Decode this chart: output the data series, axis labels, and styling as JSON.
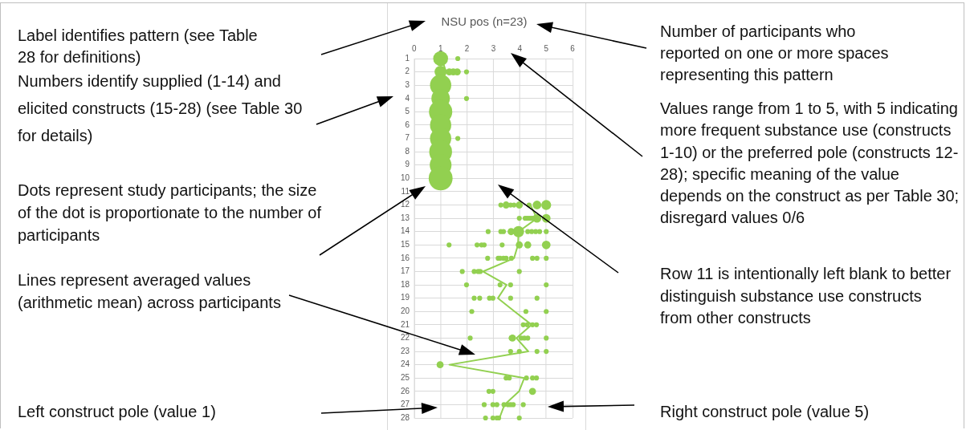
{
  "chart_data": {
    "type": "bubble",
    "title": "NSU pos (n=23)",
    "xlim": [
      0,
      6
    ],
    "xticks": [
      0,
      1,
      2,
      3,
      4,
      5,
      6
    ],
    "ylim": [
      28,
      1
    ],
    "yticks": [
      1,
      2,
      3,
      4,
      5,
      6,
      7,
      8,
      9,
      10,
      11,
      12,
      13,
      14,
      15,
      16,
      17,
      18,
      19,
      20,
      21,
      22,
      23,
      24,
      25,
      26,
      27,
      28
    ],
    "grid": true,
    "series": [
      {
        "color": "#92d050",
        "x": [
          1,
          1.65,
          1,
          1.33,
          1.48,
          1.63,
          1.98,
          1,
          1,
          1.98,
          1,
          1,
          1,
          1.65,
          1,
          1,
          1,
          3.28,
          3.48,
          3.65,
          3.78,
          3.98,
          4.35,
          4.65,
          5,
          3.98,
          4.2,
          4.27,
          4.35,
          4.42,
          4.5,
          4.65,
          5,
          2.8,
          3.28,
          3.38,
          3.67,
          3.95,
          4.3,
          4.45,
          4.6,
          4.75,
          5,
          1.32,
          2.38,
          2.55,
          2.65,
          3.33,
          3.98,
          4.3,
          5,
          2.78,
          3.18,
          3.25,
          3.38,
          3.48,
          3.68,
          4.48,
          4.65,
          5,
          1.82,
          2.27,
          2.42,
          2.5,
          3.98,
          1.98,
          3.25,
          3.65,
          5,
          2.27,
          2.48,
          2.85,
          2.98,
          3.65,
          4.65,
          2.18,
          4.23,
          5,
          4.13,
          4.28,
          4.48,
          4.63,
          2.12,
          3.67,
          3.72,
          3.75,
          4.05,
          4.17,
          4.3,
          5,
          3.65,
          3.98,
          4.65,
          5,
          0.98,
          3.48,
          3.6,
          4.25,
          4.48,
          4.63,
          2.83,
          2.98,
          4.48,
          2.65,
          2.98,
          3.13,
          3.4,
          3.55,
          3.65,
          3.75,
          4.13,
          2.7,
          2.98,
          3.13,
          3.2,
          3.98
        ],
        "values": [
          1,
          1,
          2,
          2,
          2,
          2,
          2,
          3,
          4,
          4,
          5,
          6,
          7,
          7,
          8,
          9,
          10,
          12,
          12,
          12,
          12,
          12,
          12,
          12,
          12,
          13,
          13,
          13,
          13,
          13,
          13,
          13,
          13,
          14,
          14,
          14,
          14,
          14,
          14,
          14,
          14,
          14,
          14,
          15,
          15,
          15,
          15,
          15,
          15,
          15,
          15,
          16,
          16,
          16,
          16,
          16,
          16,
          16,
          16,
          16,
          17,
          17,
          17,
          17,
          17,
          18,
          18,
          18,
          18,
          19,
          19,
          19,
          19,
          19,
          19,
          20,
          20,
          20,
          21,
          21,
          21,
          21,
          22,
          22,
          22,
          22,
          22,
          22,
          22,
          22,
          23,
          23,
          23,
          23,
          24,
          25,
          25,
          25,
          25,
          25,
          26,
          26,
          26,
          27,
          27,
          27,
          27,
          27,
          27,
          27,
          27,
          28,
          28,
          28,
          28,
          28
        ],
        "sizes": [
          0.39,
          0.043,
          0.26,
          0.087,
          0.087,
          0.087,
          0.043,
          0.79,
          0.6,
          0.043,
          0.95,
          0.79,
          0.79,
          0.043,
          0.91,
          0.83,
          1,
          0.043,
          0.087,
          0.043,
          0.043,
          0.087,
          0.043,
          0.13,
          0.17,
          0.043,
          0.043,
          0.043,
          0.043,
          0.043,
          0.043,
          0.13,
          0.13,
          0.043,
          0.043,
          0.043,
          0.087,
          0.22,
          0.043,
          0.043,
          0.043,
          0.043,
          0.043,
          0.043,
          0.043,
          0.043,
          0.043,
          0.043,
          0.087,
          0.087,
          0.13,
          0.043,
          0.043,
          0.043,
          0.043,
          0.043,
          0.043,
          0.043,
          0.043,
          0.043,
          0.043,
          0.043,
          0.043,
          0.043,
          0.043,
          0.043,
          0.043,
          0.043,
          0.043,
          0.043,
          0.043,
          0.043,
          0.043,
          0.043,
          0.043,
          0.043,
          0.043,
          0.043,
          0.043,
          0.043,
          0.043,
          0.043,
          0.043,
          0.043,
          0.087,
          0.043,
          0.043,
          0.043,
          0.043,
          0.043,
          0.043,
          0.043,
          0.043,
          0.043,
          0.087,
          0.043,
          0.043,
          0.043,
          0.043,
          0.043,
          0.043,
          0.043,
          0.087,
          0.043,
          0.043,
          0.043,
          0.043,
          0.043,
          0.043,
          0.043,
          0.043,
          0.043,
          0.043,
          0.043,
          0.043,
          0.043
        ]
      },
      {
        "type": "line",
        "color": "#92d050",
        "x": [
          1.05,
          1.2
        ],
        "values": [
          1,
          2
        ]
      },
      {
        "type": "line",
        "color": "#92d050",
        "x": [
          4.4,
          4.65,
          3.95,
          3.93,
          3.78,
          2.6,
          3.5,
          3.17,
          3.8,
          4.45,
          3.87,
          4.32,
          1.33,
          4.17,
          3.97,
          3.42,
          3.23
        ],
        "values": [
          12,
          13,
          14,
          15,
          16,
          17,
          18,
          19,
          20,
          21,
          22,
          23,
          24,
          25,
          26,
          27,
          28
        ]
      }
    ],
    "annotations": [
      "Label identifies pattern (see Table 28 for definitions)",
      "Numbers identify supplied (1-14) and elicited constructs (15-28) (see Table 30 for details)",
      "Dots represent study participants; the size of the dot is proportionate to the number of participants",
      "Lines represent averaged values (arithmetic mean) across participants",
      "Left construct pole (value 1)",
      "Number of participants who reported on one or more spaces representing this pattern",
      "Values range from 1 to 5, with 5 indicating more frequent substance use (constructs 1-10) or the preferred pole (constructs 12-28); specific meaning of the value depends on the construct as per Table 30; disregard values 0/6",
      "Row 11 is intentionally left blank to better distinguish substance use constructs from other constructs",
      "Right construct pole (value 5)"
    ]
  }
}
